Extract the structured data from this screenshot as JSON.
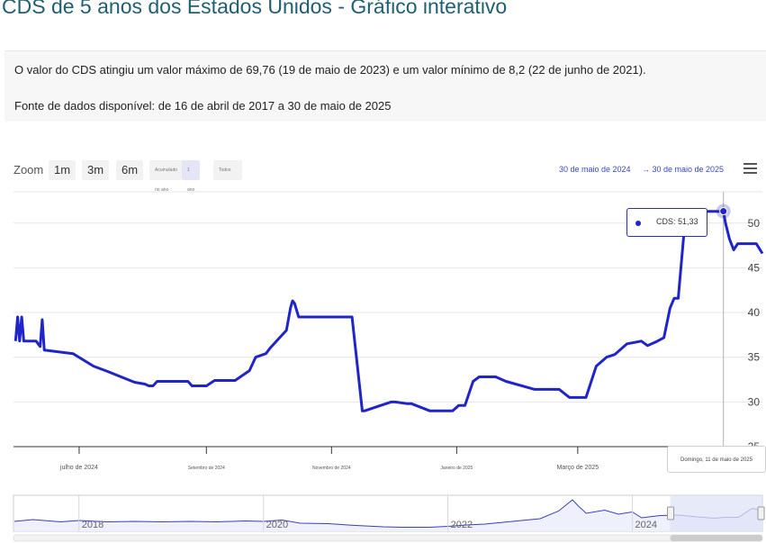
{
  "page": {
    "title": "CDS de 5 anos dos Estados Unidos - Gráfico interativo",
    "summary": "O valor do CDS atingiu um valor máximo de 69,76 (19 de maio de 2023) e um valor mínimo de 8,2 (22 de junho de 2021).",
    "source_range": "Fonte de dados disponível: de 16 de abril de 2017 a 30 de maio de 2025"
  },
  "toolbar": {
    "zoom_label": "Zoom",
    "buttons": [
      "1m",
      "3m",
      "6m",
      "Acumulado no ano",
      "1 ano",
      "Todos"
    ],
    "range_from": "30 de maio de 2024",
    "range_to": "→ 30 de maio de 2025",
    "menu_icon": "hamburger-menu-icon"
  },
  "tooltip": {
    "text": "CDS: 51,33",
    "date": "Domingo, 11 de maio de 2025"
  },
  "colors": {
    "series": "#1f25c8",
    "title": "#1f5f73",
    "navigator_fill": "#dfe3f7"
  },
  "chart_data": {
    "type": "line",
    "series": [
      {
        "name": "CDS",
        "x": [
          "2024-05-31",
          "2024-06-01",
          "2024-06-02",
          "2024-06-03",
          "2024-06-04",
          "2024-06-10",
          "2024-06-12",
          "2024-06-13",
          "2024-06-14",
          "2024-06-28",
          "2024-07-08",
          "2024-07-15",
          "2024-07-28",
          "2024-08-02",
          "2024-08-04",
          "2024-08-06",
          "2024-08-08",
          "2024-08-23",
          "2024-08-25",
          "2024-09-01",
          "2024-09-05",
          "2024-09-15",
          "2024-09-22",
          "2024-09-25",
          "2024-09-30",
          "2024-10-02",
          "2024-10-06",
          "2024-10-10",
          "2024-10-12",
          "2024-10-13",
          "2024-10-14",
          "2024-10-16",
          "2024-11-10",
          "2024-11-11",
          "2024-11-16",
          "2024-11-17",
          "2024-11-30",
          "2024-12-02",
          "2024-12-08",
          "2024-12-10",
          "2024-12-19",
          "2024-12-21",
          "2024-12-30",
          "2025-01-02",
          "2025-01-05",
          "2025-01-09",
          "2025-01-12",
          "2025-01-20",
          "2025-01-25",
          "2025-02-08",
          "2025-02-10",
          "2025-02-20",
          "2025-02-25",
          "2025-03-01",
          "2025-03-05",
          "2025-03-10",
          "2025-03-15",
          "2025-03-19",
          "2025-03-25",
          "2025-04-01",
          "2025-04-04",
          "2025-04-08",
          "2025-04-12",
          "2025-04-15",
          "2025-04-17",
          "2025-04-19",
          "2025-04-22",
          "2025-04-25",
          "2025-04-26",
          "2025-05-05",
          "2025-05-09",
          "2025-05-11",
          "2025-05-12",
          "2025-05-14",
          "2025-05-16",
          "2025-05-18",
          "2025-05-27",
          "2025-05-30"
        ],
        "y": [
          36.8,
          39.5,
          36.8,
          39.5,
          36.8,
          36.8,
          36.2,
          39.2,
          35.8,
          35.4,
          34.0,
          33.4,
          32.2,
          32.0,
          31.8,
          31.8,
          32.3,
          32.3,
          31.8,
          31.8,
          32.4,
          32.4,
          33.5,
          35.0,
          35.4,
          36.0,
          37.0,
          38.0,
          40.5,
          41.3,
          41.0,
          39.5,
          39.5,
          39.5,
          29.0,
          29.0,
          30.0,
          30.0,
          29.8,
          29.8,
          29.0,
          29.0,
          29.0,
          29.6,
          29.6,
          32.3,
          32.8,
          32.8,
          32.3,
          31.4,
          31.4,
          31.4,
          30.5,
          30.5,
          30.5,
          34.0,
          35.0,
          35.3,
          36.5,
          36.8,
          36.3,
          36.7,
          37.2,
          40.5,
          41.6,
          41.6,
          49.5,
          50.0,
          51.3,
          51.3,
          51.3,
          51.33,
          50.0,
          48.2,
          47.0,
          47.7,
          47.7,
          46.6
        ]
      }
    ],
    "x_ticks": [
      "julho de 2024",
      "Setembro de 2024",
      "Novembro de 2024",
      "Janeiro de 2025",
      "Março de 2025"
    ],
    "y_ticks": [
      25,
      30,
      35,
      40,
      45,
      50
    ],
    "ylim": [
      25,
      53.5
    ],
    "xlim": [
      "2024-05-30",
      "2025-05-30"
    ],
    "navigator": {
      "x_labels": [
        "2018",
        "2020",
        "2022",
        "2024"
      ],
      "x_years": [
        2018,
        2020,
        2022,
        2024
      ],
      "xlim": [
        2017.29,
        2025.41
      ],
      "years": [
        2017.3,
        2017.5,
        2017.8,
        2018.0,
        2018.3,
        2018.6,
        2018.9,
        2019.2,
        2019.5,
        2019.8,
        2020.0,
        2020.2,
        2020.4,
        2020.7,
        2021.0,
        2021.3,
        2021.5,
        2021.8,
        2022.0,
        2022.2,
        2022.4,
        2022.7,
        2022.9,
        2023.0,
        2023.2,
        2023.35,
        2023.42,
        2023.5,
        2023.7,
        2023.85,
        2024.0,
        2024.1,
        2024.3,
        2024.5,
        2024.7,
        2024.9,
        2025.0,
        2025.15,
        2025.3,
        2025.41
      ],
      "values": [
        22,
        26,
        21,
        24,
        21,
        22,
        21,
        22,
        21,
        23,
        22,
        25,
        18,
        17,
        13,
        10,
        9,
        9,
        11,
        14,
        16,
        22,
        26,
        28,
        45,
        70,
        55,
        40,
        47,
        38,
        43,
        30,
        35,
        36,
        32,
        29,
        31,
        31,
        51,
        46
      ],
      "ylim": [
        0,
        80
      ],
      "selection": [
        "2024-05-30",
        "2025-05-30"
      ]
    }
  }
}
